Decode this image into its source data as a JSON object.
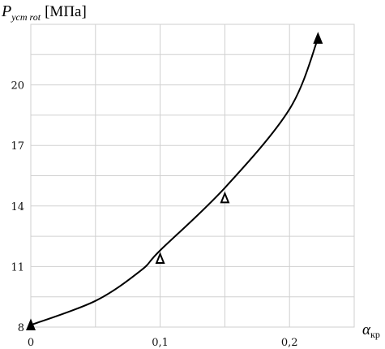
{
  "chart_data": {
    "type": "line",
    "title": "",
    "ylabel": {
      "symbol": "P",
      "subscript": "уст rot",
      "unit": "[МПа]"
    },
    "xlabel": {
      "symbol": "α",
      "subscript": "кр"
    },
    "xlim": [
      0,
      0.25
    ],
    "ylim": [
      8,
      23
    ],
    "x_ticks": [
      {
        "value": 0,
        "label": "0"
      },
      {
        "value": 0.1,
        "label": "0,1"
      },
      {
        "value": 0.2,
        "label": "0,2"
      }
    ],
    "y_ticks": [
      {
        "value": 8,
        "label": "8"
      },
      {
        "value": 11,
        "label": "11"
      },
      {
        "value": 14,
        "label": "14"
      },
      {
        "value": 17,
        "label": "17"
      },
      {
        "value": 20,
        "label": "20"
      }
    ],
    "grid": true,
    "series": [
      {
        "kind": "curve",
        "x": [
          0,
          0.05,
          0.085,
          0.1,
          0.15,
          0.2,
          0.222
        ],
        "y": [
          8.1,
          9.3,
          10.8,
          11.8,
          14.9,
          18.8,
          22.3
        ]
      },
      {
        "kind": "markers",
        "marker": "triangle",
        "x": [
          0,
          0.1,
          0.15,
          0.222
        ],
        "y": [
          8.1,
          11.4,
          14.4,
          22.3
        ],
        "filled": [
          true,
          false,
          false,
          true
        ]
      }
    ]
  }
}
